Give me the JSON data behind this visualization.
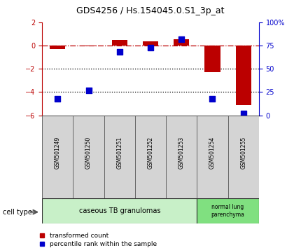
{
  "title": "GDS4256 / Hs.154045.0.S1_3p_at",
  "samples": [
    "GSM501249",
    "GSM501250",
    "GSM501251",
    "GSM501252",
    "GSM501253",
    "GSM501254",
    "GSM501255"
  ],
  "red_values": [
    -0.3,
    -0.05,
    0.5,
    0.35,
    0.55,
    -2.3,
    -5.1
  ],
  "blue_percentile": [
    18,
    27,
    68,
    73,
    82,
    18,
    2
  ],
  "ylim_left": [
    -6,
    2
  ],
  "ylim_right": [
    0,
    100
  ],
  "yticks_left": [
    -6,
    -4,
    -2,
    0,
    2
  ],
  "yticks_right": [
    0,
    25,
    50,
    75,
    100
  ],
  "ytick_labels_right": [
    "0",
    "25",
    "50",
    "75",
    "100%"
  ],
  "red_color": "#bb0000",
  "blue_color": "#0000cc",
  "dashdot_color": "#bb0000",
  "dotted_color": "#000000",
  "group1_label": "caseous TB granulomas",
  "group2_label": "normal lung\nparenchyma",
  "group1_color": "#c8f0c8",
  "group2_color": "#80e080",
  "cell_type_label": "cell type",
  "legend_red": "transformed count",
  "legend_blue": "percentile rank within the sample",
  "bar_width": 0.5,
  "blue_marker_size": 40,
  "title_fontsize": 9,
  "tick_fontsize": 7,
  "label_fontsize": 6.5,
  "group_fontsize": 7
}
